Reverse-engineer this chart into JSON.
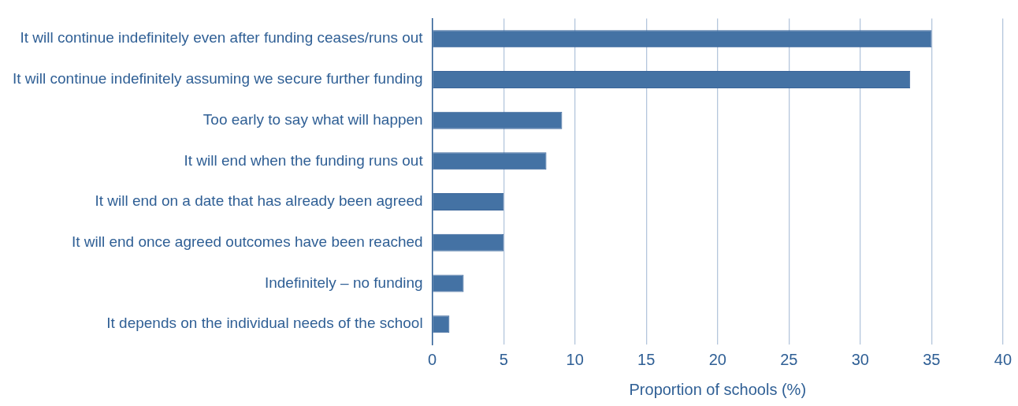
{
  "chart_data": {
    "type": "bar",
    "orientation": "horizontal",
    "xlabel": "Proportion of schools (%)",
    "categories": [
      "It will continue indefinitely even after funding ceases/runs out",
      "It will continue indefinitely assuming we secure further funding",
      "Too early to say what will happen",
      "It will end when the funding runs out",
      "It will end on a date that has already been agreed",
      "It will end once agreed outcomes have been reached",
      "Indefinitely – no funding",
      "It depends on the individual needs of the school"
    ],
    "values": [
      35,
      33.5,
      9.1,
      8,
      5,
      5,
      2.2,
      1.2
    ],
    "color": "#4472a4",
    "xlim": [
      0,
      40
    ],
    "xticks": [
      0,
      5,
      10,
      15,
      20,
      25,
      30,
      35,
      40
    ],
    "grid": "x"
  }
}
